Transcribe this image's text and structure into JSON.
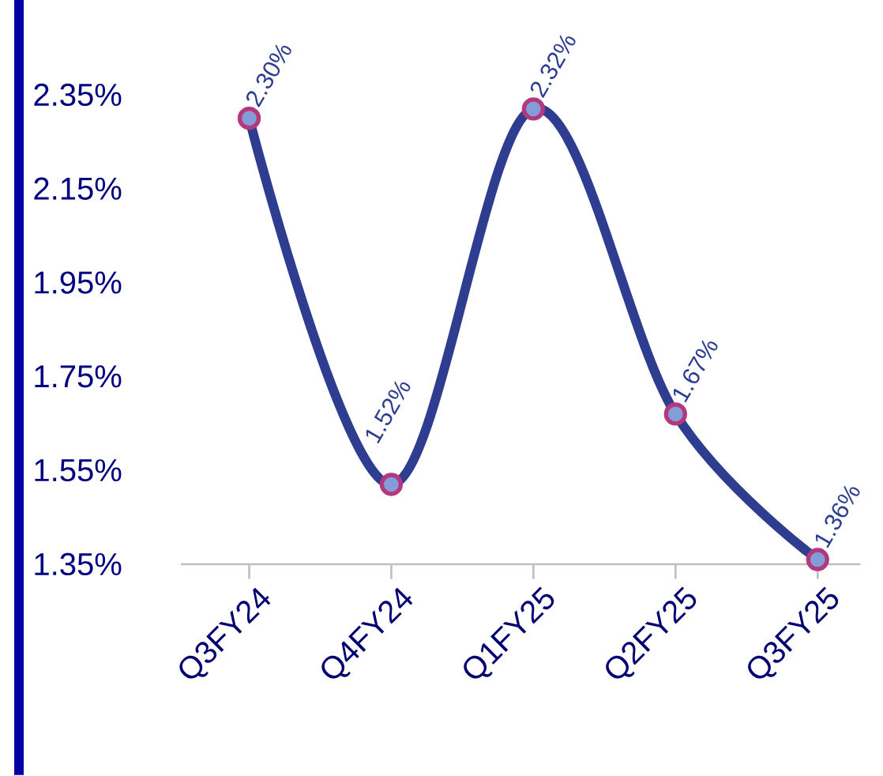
{
  "chart_data": {
    "type": "line",
    "categories": [
      "Q3FY24",
      "Q4FY24",
      "Q1FY25",
      "Q2FY25",
      "Q3FY25"
    ],
    "series": [
      {
        "color": "#2e3d8f",
        "values": [
          2.3,
          1.52,
          2.32,
          1.67,
          1.36
        ],
        "value_labels": [
          "2.30%",
          "1.52%",
          "2.32%",
          "1.67%",
          "1.36%"
        ]
      }
    ],
    "ylim": [
      1.35,
      2.35
    ],
    "yticks": [
      {
        "value": 1.35,
        "label": "1.35%"
      },
      {
        "value": 1.55,
        "label": "1.55%"
      },
      {
        "value": 1.75,
        "label": "1.75%"
      },
      {
        "value": 1.95,
        "label": "1.95%"
      },
      {
        "value": 2.15,
        "label": "2.15%"
      },
      {
        "value": 2.35,
        "label": "2.35%"
      }
    ],
    "marker": "circle",
    "line_style": "solid"
  }
}
